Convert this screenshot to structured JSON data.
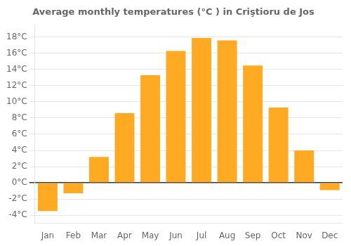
{
  "chart_data": {
    "type": "bar",
    "title": "Average monthly temperatures (°C ) in Criştioru de Jos",
    "categories": [
      "Jan",
      "Feb",
      "Mar",
      "Apr",
      "May",
      "Jun",
      "Jul",
      "Aug",
      "Sep",
      "Oct",
      "Nov",
      "Dec"
    ],
    "values": [
      -3.5,
      -1.3,
      3.2,
      8.6,
      13.3,
      16.3,
      17.9,
      17.6,
      14.5,
      9.3,
      4.0,
      -0.9
    ],
    "color": "#FFAA22",
    "ylim": [
      -5,
      19.5
    ],
    "yticks": [
      {
        "value": -4,
        "label": "-4°C"
      },
      {
        "value": -2,
        "label": "-2°C"
      },
      {
        "value": 0,
        "label": "0°C"
      },
      {
        "value": 2,
        "label": "2°C"
      },
      {
        "value": 4,
        "label": "4°C"
      },
      {
        "value": 6,
        "label": "6°C"
      },
      {
        "value": 8,
        "label": "8°C"
      },
      {
        "value": 10,
        "label": "10°C"
      },
      {
        "value": 12,
        "label": "12°C"
      },
      {
        "value": 14,
        "label": "14°C"
      },
      {
        "value": 16,
        "label": "16°C"
      },
      {
        "value": 18,
        "label": "18°C"
      }
    ],
    "grid": true
  }
}
